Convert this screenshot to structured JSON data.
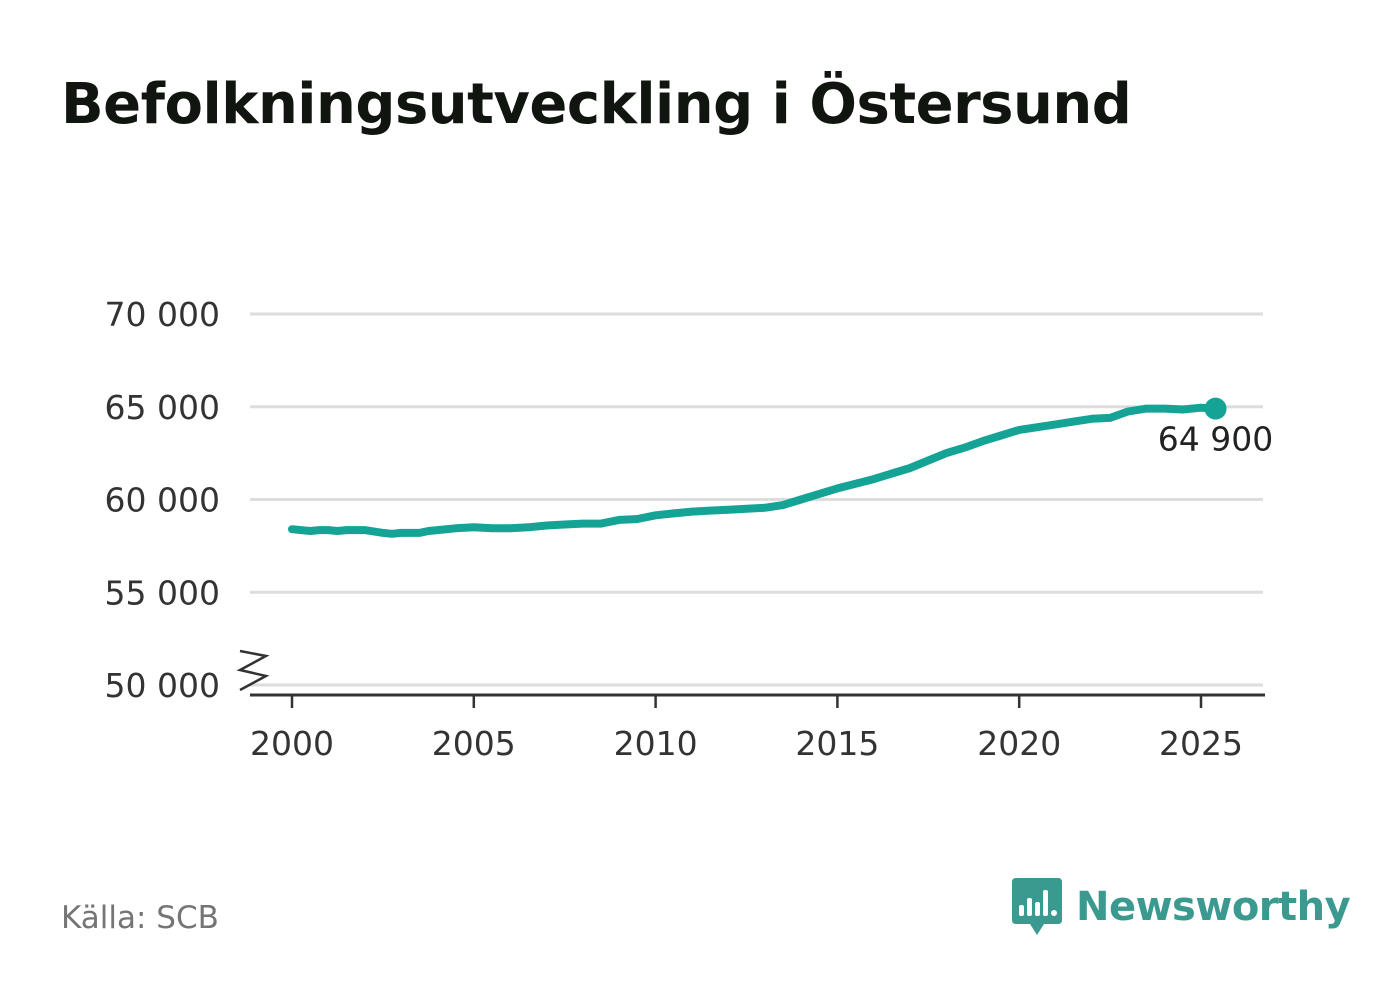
{
  "title": "Befolkningsutveckling i Östersund",
  "source": "Källa: SCB",
  "brand": {
    "name": "Newsworthy",
    "icon": "newsworthy-logo-icon",
    "color": "#3a9a8f"
  },
  "chart_data": {
    "type": "line",
    "title": "Befolkningsutveckling i Östersund",
    "xlabel": "",
    "ylabel": "",
    "xlim": [
      1999.5,
      2026.3
    ],
    "ylim": [
      50000,
      70000
    ],
    "axis_break": true,
    "grid": true,
    "x_ticks": [
      2000,
      2005,
      2010,
      2015,
      2020,
      2025
    ],
    "x_tick_labels": [
      "2000",
      "2005",
      "2010",
      "2015",
      "2020",
      "2025"
    ],
    "y_ticks": [
      50000,
      55000,
      60000,
      65000,
      70000
    ],
    "y_tick_labels": [
      "50 000",
      "55 000",
      "60 000",
      "65 000",
      "70 000"
    ],
    "line_color": "#14a395",
    "end_label": "64 900",
    "series": [
      {
        "x": [
          2000.0,
          2000.5,
          2000.75,
          2001.0,
          2001.25,
          2001.5,
          2002.0,
          2002.5,
          2002.75,
          2003.0,
          2003.5,
          2003.75,
          2004.0,
          2004.5,
          2005.0,
          2005.5,
          2006.0,
          2006.5,
          2007.0,
          2007.5,
          2008.0,
          2008.5,
          2009.0,
          2009.5,
          2010.0,
          2010.5,
          2011.0,
          2011.5,
          2012.0,
          2012.5,
          2013.0,
          2013.5,
          2014.0,
          2014.5,
          2015.0,
          2015.5,
          2016.0,
          2016.5,
          2017.0,
          2017.5,
          2018.0,
          2018.5,
          2019.0,
          2019.5,
          2020.0,
          2020.5,
          2021.0,
          2021.5,
          2022.0,
          2022.5,
          2023.0,
          2023.5,
          2024.0,
          2024.5,
          2025.0,
          2025.4
        ],
        "y": [
          58400,
          58300,
          58350,
          58350,
          58300,
          58350,
          58350,
          58200,
          58150,
          58200,
          58200,
          58300,
          58350,
          58450,
          58500,
          58450,
          58450,
          58500,
          58600,
          58650,
          58700,
          58700,
          58900,
          58950,
          59150,
          59250,
          59350,
          59400,
          59450,
          59500,
          59550,
          59700,
          60000,
          60300,
          60600,
          60850,
          61100,
          61400,
          61700,
          62100,
          62500,
          62800,
          63150,
          63450,
          63750,
          63900,
          64050,
          64200,
          64350,
          64400,
          64750,
          64900,
          64900,
          64850,
          64950,
          64900
        ]
      }
    ]
  }
}
